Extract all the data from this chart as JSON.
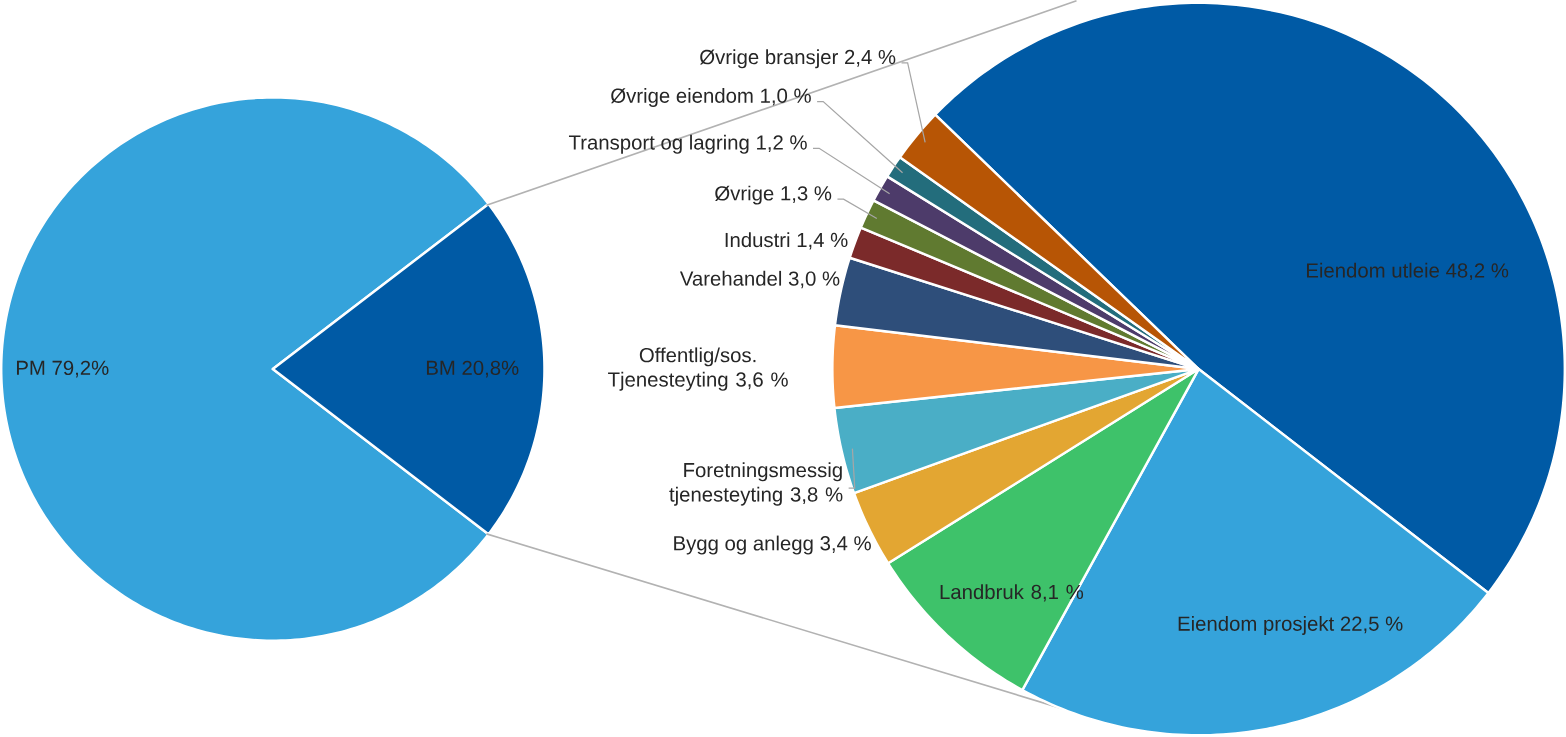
{
  "chart_data": [
    {
      "type": "pie",
      "categories": [
        "PM",
        "BM"
      ],
      "values": [
        79.2,
        20.8
      ],
      "value_labels": [
        "79,2%",
        "20,8%"
      ],
      "colors": [
        "#35a3db",
        "#005aa5"
      ]
    },
    {
      "type": "pie",
      "categories": [
        "Eiendom utleie",
        "Eiendom prosjekt",
        "Landbruk",
        "Bygg og anlegg",
        "Foretningsmessig tjenesteyting",
        "Offentlig/sos. Tjenesteyting",
        "Varehandel",
        "Industri",
        "Øvrige",
        "Transport og lagring",
        "Øvrige eiendom",
        "Øvrige bransjer"
      ],
      "values": [
        48.2,
        22.5,
        8.1,
        3.4,
        3.8,
        3.6,
        3.0,
        1.4,
        1.3,
        1.2,
        1.0,
        2.4
      ],
      "value_labels": [
        "48,2 %",
        "22,5 %",
        "8,1 %",
        "3,4 %",
        "3,8 %",
        "3,6 %",
        "3,0 %",
        "1,4 %",
        "1,3 %",
        "1,2 %",
        "1,0 %",
        "2,4 %"
      ],
      "colors": [
        "#005aa5",
        "#35a3db",
        "#3ec26a",
        "#e3a632",
        "#4aaec6",
        "#f79646",
        "#2e4e7a",
        "#7b2a2a",
        "#607a30",
        "#4d3b6a",
        "#236d7c",
        "#b75505"
      ]
    }
  ]
}
